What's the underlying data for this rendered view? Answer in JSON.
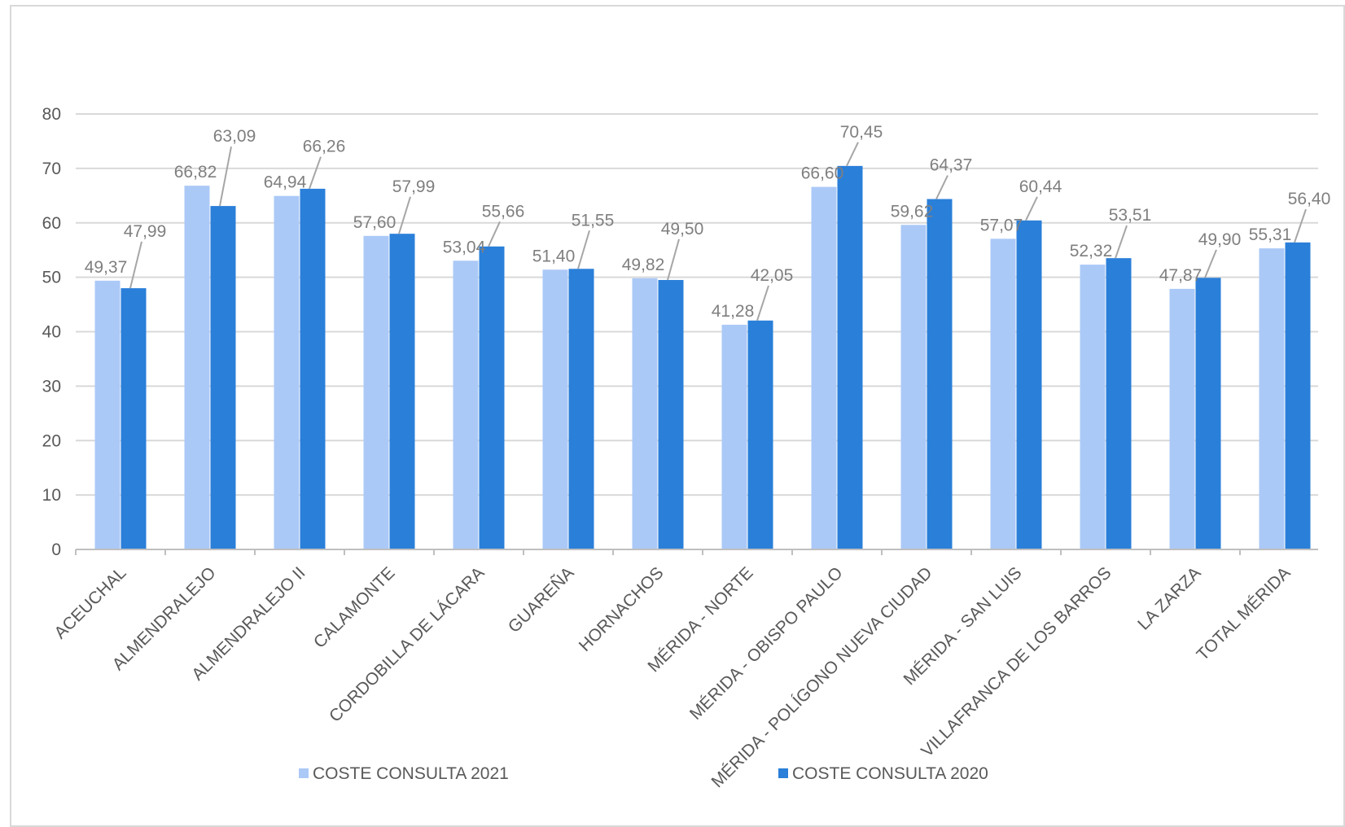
{
  "chart_data": {
    "type": "bar",
    "categories": [
      "ACEUCHAL",
      "ALMENDRALEJO",
      "ALMENDRALEJO II",
      "CALAMONTE",
      "CORDOBILLA DE LÁCARA",
      "GUAREÑA",
      "HORNACHOS",
      "MÉRIDA - NORTE",
      "MÉRIDA - OBISPO PAULO",
      "MÉRIDA - POLÍGONO NUEVA CIUDAD",
      "MÉRIDA - SAN LUIS",
      "VILLAFRANCA DE LOS BARROS",
      "LA ZARZA",
      "TOTAL MÉRIDA"
    ],
    "series": [
      {
        "name": "COSTE CONSULTA 2021",
        "color": "#abc9f7",
        "values": [
          49.37,
          66.82,
          64.94,
          57.6,
          53.04,
          51.4,
          49.82,
          41.28,
          66.6,
          59.62,
          57.07,
          52.32,
          47.87,
          55.31
        ],
        "labels": [
          "49,37",
          "66,82",
          "64,94",
          "57,60",
          "53,04",
          "51,40",
          "49,82",
          "41,28",
          "66,60",
          "59,62",
          "57,07",
          "52,32",
          "47,87",
          "55,31"
        ]
      },
      {
        "name": "COSTE CONSULTA 2020",
        "color": "#2a7fd9",
        "values": [
          47.99,
          63.09,
          66.26,
          57.99,
          55.66,
          51.55,
          49.5,
          42.05,
          70.45,
          64.37,
          60.44,
          53.51,
          49.9,
          56.4
        ],
        "labels": [
          "47,99",
          "63,09",
          "66,26",
          "57,99",
          "55,66",
          "51,55",
          "49,50",
          "42,05",
          "70,45",
          "64,37",
          "60,44",
          "53,51",
          "49,90",
          "56,40"
        ]
      }
    ],
    "yticks": [
      "0",
      "10",
      "20",
      "30",
      "40",
      "50",
      "60",
      "70",
      "80"
    ],
    "ylim": [
      0,
      80
    ],
    "grid": true,
    "legend": "bottom",
    "title": "",
    "xlabel": "",
    "ylabel": ""
  }
}
